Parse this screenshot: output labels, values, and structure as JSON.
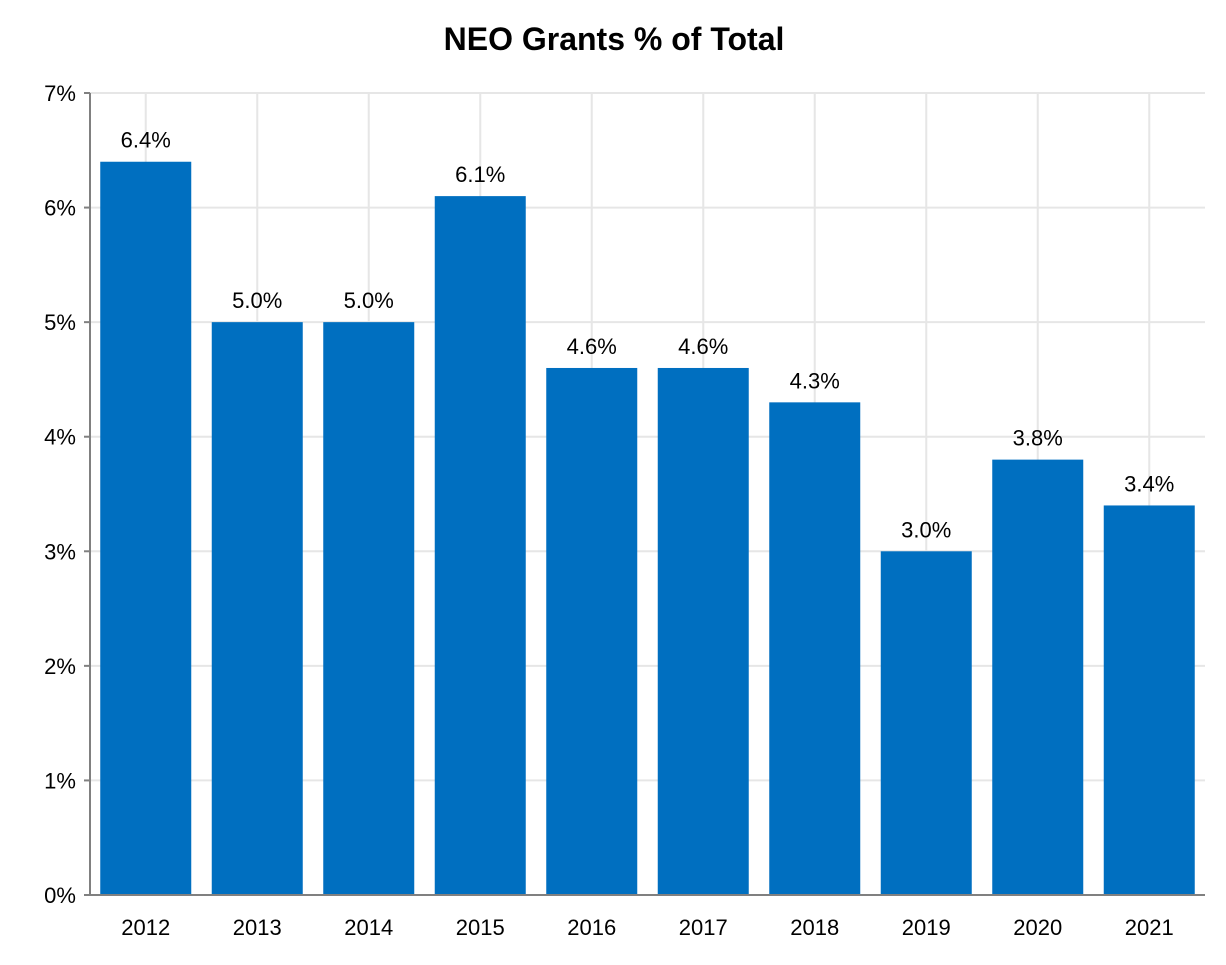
{
  "chart_data": {
    "type": "bar",
    "title": "NEO Grants % of Total",
    "xlabel": "",
    "ylabel": "",
    "categories": [
      "2012",
      "2013",
      "2014",
      "2015",
      "2016",
      "2017",
      "2018",
      "2019",
      "2020",
      "2021"
    ],
    "values": [
      6.4,
      5.0,
      5.0,
      6.1,
      4.6,
      4.6,
      4.3,
      3.0,
      3.8,
      3.4
    ],
    "data_labels": [
      "6.4%",
      "5.0%",
      "5.0%",
      "6.1%",
      "4.6%",
      "4.6%",
      "4.3%",
      "3.0%",
      "3.8%",
      "3.4%"
    ],
    "ylim": [
      0,
      7
    ],
    "yticks": [
      0,
      1,
      2,
      3,
      4,
      5,
      6,
      7
    ],
    "ytick_labels": [
      "0%",
      "1%",
      "2%",
      "3%",
      "4%",
      "5%",
      "6%",
      "7%"
    ],
    "grid": true,
    "legend": "none",
    "colors": {
      "bar": "#006FC0",
      "grid": "#E6E6E6",
      "axis": "#808080"
    }
  }
}
